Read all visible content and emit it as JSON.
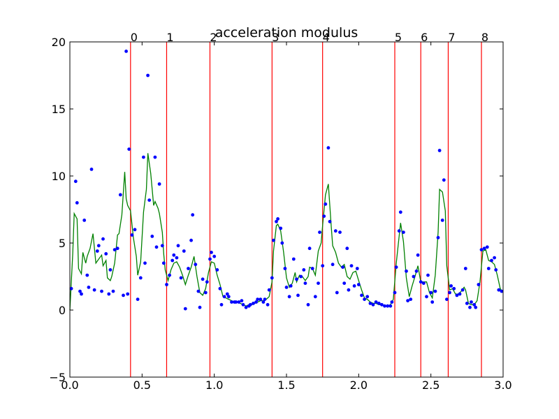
{
  "chart_data": {
    "type": "scatter",
    "title": "acceleration modulus",
    "xlabel": "",
    "ylabel": "",
    "xlim": [
      0.0,
      3.0
    ],
    "ylim": [
      -5,
      20
    ],
    "grid": false,
    "x_ticks": [
      "0.0",
      "0.5",
      "1.0",
      "1.5",
      "2.0",
      "2.5",
      "3.0"
    ],
    "y_ticks": [
      "−5",
      "0",
      "5",
      "10",
      "15",
      "20"
    ],
    "colors": {
      "points": "#0000ff",
      "smoothed": "#008000",
      "markers": "#ff0000",
      "axes": "#000000"
    },
    "event_markers": [
      {
        "label": "0",
        "x": 0.42
      },
      {
        "label": "1",
        "x": 0.67
      },
      {
        "label": "2",
        "x": 0.97
      },
      {
        "label": "3",
        "x": 1.4
      },
      {
        "label": "4",
        "x": 1.75
      },
      {
        "label": "5",
        "x": 2.25
      },
      {
        "label": "6",
        "x": 2.43
      },
      {
        "label": "7",
        "x": 2.62
      },
      {
        "label": "8",
        "x": 2.85
      }
    ],
    "points": [
      [
        0.01,
        1.6
      ],
      [
        0.04,
        9.6
      ],
      [
        0.05,
        8.0
      ],
      [
        0.07,
        1.4
      ],
      [
        0.08,
        1.2
      ],
      [
        0.1,
        6.7
      ],
      [
        0.12,
        2.6
      ],
      [
        0.13,
        1.7
      ],
      [
        0.15,
        10.5
      ],
      [
        0.17,
        1.5
      ],
      [
        0.19,
        4.4
      ],
      [
        0.2,
        4.8
      ],
      [
        0.22,
        1.4
      ],
      [
        0.23,
        5.3
      ],
      [
        0.25,
        4.2
      ],
      [
        0.27,
        1.2
      ],
      [
        0.28,
        3.0
      ],
      [
        0.3,
        1.4
      ],
      [
        0.31,
        4.5
      ],
      [
        0.33,
        4.6
      ],
      [
        0.35,
        8.6
      ],
      [
        0.37,
        1.1
      ],
      [
        0.39,
        19.3
      ],
      [
        0.4,
        1.2
      ],
      [
        0.41,
        12.0
      ],
      [
        0.43,
        5.6
      ],
      [
        0.45,
        6.0
      ],
      [
        0.47,
        0.8
      ],
      [
        0.49,
        2.4
      ],
      [
        0.51,
        11.4
      ],
      [
        0.52,
        3.5
      ],
      [
        0.54,
        17.5
      ],
      [
        0.55,
        8.2
      ],
      [
        0.57,
        5.5
      ],
      [
        0.59,
        11.4
      ],
      [
        0.6,
        4.7
      ],
      [
        0.62,
        9.4
      ],
      [
        0.64,
        4.8
      ],
      [
        0.65,
        3.5
      ],
      [
        0.67,
        1.9
      ],
      [
        0.69,
        2.6
      ],
      [
        0.71,
        3.7
      ],
      [
        0.72,
        4.1
      ],
      [
        0.74,
        3.9
      ],
      [
        0.75,
        4.8
      ],
      [
        0.77,
        2.4
      ],
      [
        0.79,
        4.4
      ],
      [
        0.8,
        0.1
      ],
      [
        0.82,
        3.1
      ],
      [
        0.84,
        5.2
      ],
      [
        0.85,
        7.1
      ],
      [
        0.87,
        3.4
      ],
      [
        0.89,
        1.4
      ],
      [
        0.9,
        0.2
      ],
      [
        0.92,
        2.3
      ],
      [
        0.94,
        1.3
      ],
      [
        0.95,
        2.1
      ],
      [
        0.97,
        3.8
      ],
      [
        0.98,
        4.3
      ],
      [
        1.0,
        4.0
      ],
      [
        1.02,
        3.0
      ],
      [
        1.04,
        1.6
      ],
      [
        1.05,
        0.4
      ],
      [
        1.07,
        1.0
      ],
      [
        1.09,
        1.2
      ],
      [
        1.1,
        1.0
      ],
      [
        1.12,
        0.6
      ],
      [
        1.14,
        0.6
      ],
      [
        1.15,
        0.6
      ],
      [
        1.17,
        0.6
      ],
      [
        1.19,
        0.7
      ],
      [
        1.2,
        0.4
      ],
      [
        1.22,
        0.2
      ],
      [
        1.24,
        0.3
      ],
      [
        1.25,
        0.4
      ],
      [
        1.27,
        0.5
      ],
      [
        1.29,
        0.6
      ],
      [
        1.3,
        0.8
      ],
      [
        1.32,
        0.8
      ],
      [
        1.34,
        0.6
      ],
      [
        1.35,
        0.8
      ],
      [
        1.37,
        0.4
      ],
      [
        1.38,
        1.5
      ],
      [
        1.4,
        2.4
      ],
      [
        1.41,
        5.2
      ],
      [
        1.43,
        6.6
      ],
      [
        1.44,
        6.8
      ],
      [
        1.46,
        6.1
      ],
      [
        1.47,
        5.0
      ],
      [
        1.49,
        3.1
      ],
      [
        1.5,
        1.7
      ],
      [
        1.52,
        1.0
      ],
      [
        1.53,
        1.8
      ],
      [
        1.55,
        3.8
      ],
      [
        1.57,
        2.3
      ],
      [
        1.58,
        1.1
      ],
      [
        1.6,
        2.5
      ],
      [
        1.62,
        3.0
      ],
      [
        1.63,
        2.0
      ],
      [
        1.65,
        0.4
      ],
      [
        1.66,
        4.6
      ],
      [
        1.68,
        3.1
      ],
      [
        1.7,
        1.0
      ],
      [
        1.72,
        2.0
      ],
      [
        1.73,
        5.8
      ],
      [
        1.75,
        3.3
      ],
      [
        1.76,
        7.0
      ],
      [
        1.77,
        7.9
      ],
      [
        1.79,
        12.1
      ],
      [
        1.8,
        6.6
      ],
      [
        1.82,
        3.4
      ],
      [
        1.84,
        5.9
      ],
      [
        1.85,
        1.3
      ],
      [
        1.87,
        5.8
      ],
      [
        1.89,
        3.2
      ],
      [
        1.9,
        2.0
      ],
      [
        1.92,
        4.6
      ],
      [
        1.93,
        1.5
      ],
      [
        1.95,
        3.3
      ],
      [
        1.97,
        1.8
      ],
      [
        1.99,
        3.1
      ],
      [
        2.0,
        1.9
      ],
      [
        2.02,
        1.1
      ],
      [
        2.04,
        0.8
      ],
      [
        2.06,
        1.0
      ],
      [
        2.08,
        0.5
      ],
      [
        2.1,
        0.4
      ],
      [
        2.12,
        0.6
      ],
      [
        2.14,
        0.5
      ],
      [
        2.16,
        0.4
      ],
      [
        2.18,
        0.3
      ],
      [
        2.2,
        0.3
      ],
      [
        2.22,
        0.3
      ],
      [
        2.23,
        0.6
      ],
      [
        2.25,
        1.3
      ],
      [
        2.26,
        3.2
      ],
      [
        2.28,
        5.9
      ],
      [
        2.29,
        7.3
      ],
      [
        2.31,
        5.8
      ],
      [
        2.33,
        2.9
      ],
      [
        2.34,
        0.7
      ],
      [
        2.36,
        0.8
      ],
      [
        2.38,
        2.5
      ],
      [
        2.4,
        2.9
      ],
      [
        2.41,
        4.1
      ],
      [
        2.43,
        2.1
      ],
      [
        2.45,
        2.0
      ],
      [
        2.47,
        1.0
      ],
      [
        2.48,
        2.6
      ],
      [
        2.5,
        1.3
      ],
      [
        2.51,
        0.6
      ],
      [
        2.53,
        1.4
      ],
      [
        2.55,
        5.4
      ],
      [
        2.56,
        11.9
      ],
      [
        2.58,
        6.7
      ],
      [
        2.59,
        9.7
      ],
      [
        2.61,
        0.8
      ],
      [
        2.63,
        1.3
      ],
      [
        2.64,
        1.8
      ],
      [
        2.66,
        1.6
      ],
      [
        2.68,
        1.1
      ],
      [
        2.7,
        1.2
      ],
      [
        2.72,
        1.5
      ],
      [
        2.74,
        3.1
      ],
      [
        2.75,
        0.5
      ],
      [
        2.77,
        0.2
      ],
      [
        2.78,
        0.6
      ],
      [
        2.8,
        0.4
      ],
      [
        2.81,
        0.2
      ],
      [
        2.83,
        1.9
      ],
      [
        2.85,
        4.5
      ],
      [
        2.87,
        4.6
      ],
      [
        2.89,
        4.7
      ],
      [
        2.9,
        3.1
      ],
      [
        2.92,
        3.7
      ],
      [
        2.94,
        3.9
      ],
      [
        2.95,
        3.0
      ],
      [
        2.97,
        1.5
      ],
      [
        2.99,
        1.4
      ]
    ],
    "smoothed": [
      [
        0.0,
        0.0
      ],
      [
        0.02,
        4.2
      ],
      [
        0.03,
        7.2
      ],
      [
        0.05,
        6.8
      ],
      [
        0.06,
        3.1
      ],
      [
        0.08,
        2.7
      ],
      [
        0.09,
        4.3
      ],
      [
        0.11,
        3.5
      ],
      [
        0.12,
        4.0
      ],
      [
        0.14,
        4.6
      ],
      [
        0.16,
        5.7
      ],
      [
        0.18,
        3.5
      ],
      [
        0.2,
        3.8
      ],
      [
        0.22,
        4.1
      ],
      [
        0.23,
        3.3
      ],
      [
        0.25,
        3.7
      ],
      [
        0.26,
        2.4
      ],
      [
        0.28,
        2.2
      ],
      [
        0.29,
        2.5
      ],
      [
        0.31,
        3.5
      ],
      [
        0.33,
        5.6
      ],
      [
        0.34,
        5.7
      ],
      [
        0.36,
        7.1
      ],
      [
        0.38,
        10.3
      ],
      [
        0.39,
        8.3
      ],
      [
        0.4,
        7.8
      ],
      [
        0.42,
        7.4
      ],
      [
        0.44,
        5.4
      ],
      [
        0.46,
        4.0
      ],
      [
        0.47,
        2.6
      ],
      [
        0.49,
        3.6
      ],
      [
        0.51,
        7.3
      ],
      [
        0.53,
        9.0
      ],
      [
        0.54,
        11.7
      ],
      [
        0.56,
        10.2
      ],
      [
        0.58,
        7.8
      ],
      [
        0.59,
        8.1
      ],
      [
        0.61,
        7.6
      ],
      [
        0.62,
        7.2
      ],
      [
        0.64,
        5.8
      ],
      [
        0.65,
        4.2
      ],
      [
        0.66,
        3.0
      ],
      [
        0.68,
        2.2
      ],
      [
        0.7,
        3.0
      ],
      [
        0.72,
        3.5
      ],
      [
        0.74,
        3.6
      ],
      [
        0.76,
        3.2
      ],
      [
        0.78,
        2.6
      ],
      [
        0.8,
        1.9
      ],
      [
        0.82,
        2.6
      ],
      [
        0.84,
        3.2
      ],
      [
        0.86,
        4.0
      ],
      [
        0.88,
        2.5
      ],
      [
        0.9,
        1.3
      ],
      [
        0.92,
        1.1
      ],
      [
        0.94,
        1.6
      ],
      [
        0.96,
        2.8
      ],
      [
        0.98,
        3.6
      ],
      [
        1.0,
        3.5
      ],
      [
        1.02,
        2.6
      ],
      [
        1.04,
        1.9
      ],
      [
        1.06,
        1.0
      ],
      [
        1.08,
        0.9
      ],
      [
        1.1,
        0.8
      ],
      [
        1.12,
        0.7
      ],
      [
        1.14,
        0.6
      ],
      [
        1.16,
        0.6
      ],
      [
        1.18,
        0.5
      ],
      [
        1.2,
        0.4
      ],
      [
        1.22,
        0.3
      ],
      [
        1.24,
        0.4
      ],
      [
        1.26,
        0.4
      ],
      [
        1.28,
        0.5
      ],
      [
        1.3,
        0.6
      ],
      [
        1.32,
        0.7
      ],
      [
        1.34,
        0.7
      ],
      [
        1.36,
        0.8
      ],
      [
        1.38,
        1.0
      ],
      [
        1.4,
        2.1
      ],
      [
        1.41,
        4.4
      ],
      [
        1.43,
        6.3
      ],
      [
        1.44,
        6.4
      ],
      [
        1.46,
        5.9
      ],
      [
        1.48,
        4.3
      ],
      [
        1.5,
        2.4
      ],
      [
        1.52,
        1.7
      ],
      [
        1.54,
        2.0
      ],
      [
        1.56,
        2.8
      ],
      [
        1.57,
        2.1
      ],
      [
        1.59,
        2.6
      ],
      [
        1.61,
        2.5
      ],
      [
        1.63,
        2.2
      ],
      [
        1.65,
        2.5
      ],
      [
        1.66,
        3.2
      ],
      [
        1.68,
        3.1
      ],
      [
        1.7,
        2.6
      ],
      [
        1.72,
        4.4
      ],
      [
        1.74,
        5.0
      ],
      [
        1.75,
        6.3
      ],
      [
        1.77,
        8.6
      ],
      [
        1.79,
        9.4
      ],
      [
        1.81,
        6.2
      ],
      [
        1.82,
        4.8
      ],
      [
        1.84,
        4.3
      ],
      [
        1.86,
        3.5
      ],
      [
        1.88,
        3.2
      ],
      [
        1.9,
        3.4
      ],
      [
        1.92,
        2.5
      ],
      [
        1.94,
        2.3
      ],
      [
        1.96,
        2.8
      ],
      [
        1.98,
        2.9
      ],
      [
        2.0,
        2.2
      ],
      [
        2.02,
        1.5
      ],
      [
        2.04,
        0.9
      ],
      [
        2.06,
        0.8
      ],
      [
        2.08,
        0.6
      ],
      [
        2.1,
        0.5
      ],
      [
        2.12,
        0.5
      ],
      [
        2.14,
        0.4
      ],
      [
        2.16,
        0.4
      ],
      [
        2.18,
        0.3
      ],
      [
        2.2,
        0.3
      ],
      [
        2.22,
        0.4
      ],
      [
        2.24,
        0.8
      ],
      [
        2.26,
        3.5
      ],
      [
        2.28,
        5.5
      ],
      [
        2.29,
        6.5
      ],
      [
        2.31,
        5.1
      ],
      [
        2.33,
        2.4
      ],
      [
        2.35,
        1.0
      ],
      [
        2.37,
        1.8
      ],
      [
        2.39,
        2.5
      ],
      [
        2.41,
        3.3
      ],
      [
        2.43,
        2.1
      ],
      [
        2.45,
        2.1
      ],
      [
        2.47,
        2.1
      ],
      [
        2.49,
        1.3
      ],
      [
        2.51,
        0.9
      ],
      [
        2.53,
        2.6
      ],
      [
        2.55,
        5.8
      ],
      [
        2.56,
        9.0
      ],
      [
        2.58,
        8.8
      ],
      [
        2.6,
        7.4
      ],
      [
        2.61,
        3.3
      ],
      [
        2.63,
        1.5
      ],
      [
        2.65,
        1.6
      ],
      [
        2.67,
        1.2
      ],
      [
        2.69,
        1.2
      ],
      [
        2.71,
        1.4
      ],
      [
        2.73,
        1.7
      ],
      [
        2.74,
        1.5
      ],
      [
        2.76,
        0.5
      ],
      [
        2.78,
        0.4
      ],
      [
        2.8,
        0.4
      ],
      [
        2.82,
        0.7
      ],
      [
        2.84,
        2.1
      ],
      [
        2.86,
        4.4
      ],
      [
        2.88,
        4.5
      ],
      [
        2.9,
        3.7
      ],
      [
        2.92,
        3.6
      ],
      [
        2.94,
        3.4
      ],
      [
        2.96,
        2.6
      ],
      [
        2.98,
        1.6
      ],
      [
        3.0,
        1.3
      ]
    ]
  }
}
